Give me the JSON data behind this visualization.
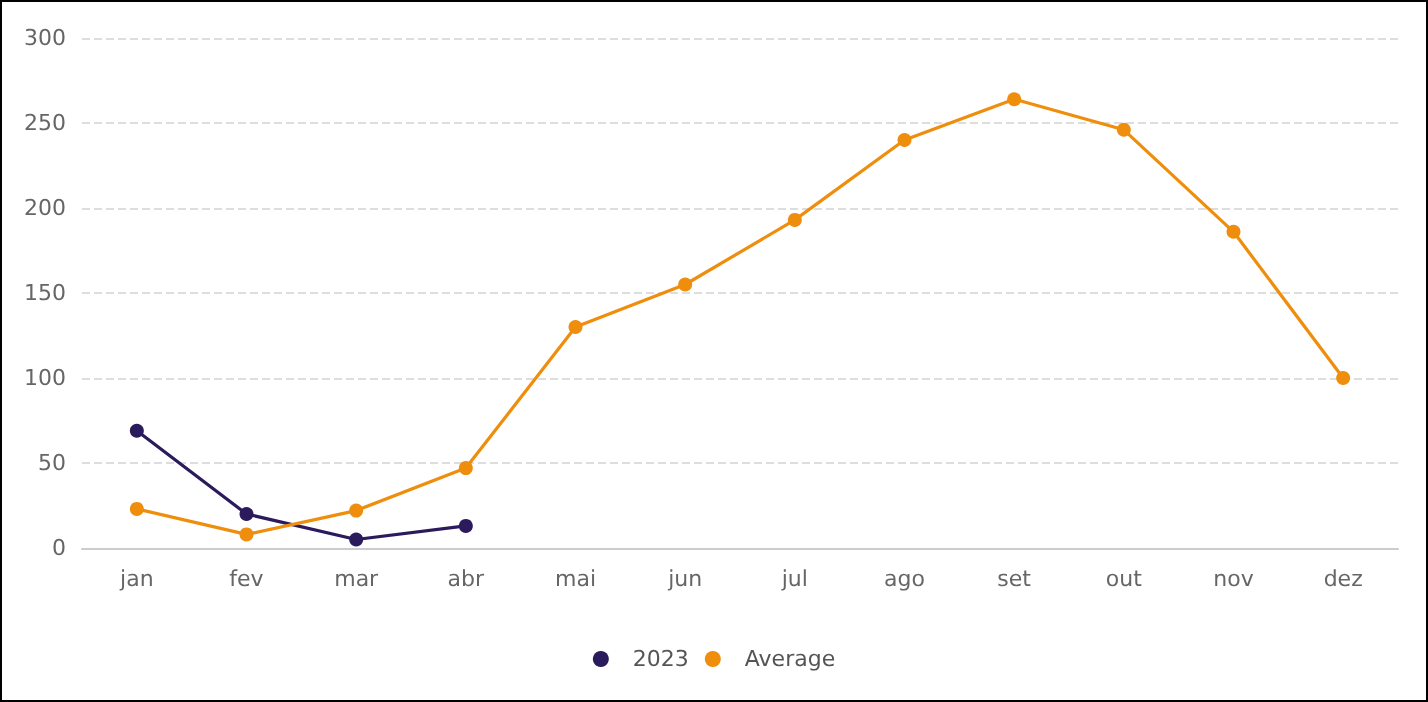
{
  "chart_data": {
    "type": "line",
    "categories": [
      "jan",
      "fev",
      "mar",
      "abr",
      "mai",
      "jun",
      "jul",
      "ago",
      "set",
      "out",
      "nov",
      "dez"
    ],
    "series": [
      {
        "name": "2023",
        "color": "#2b1a5c",
        "values": [
          69,
          20,
          5,
          13,
          null,
          null,
          null,
          null,
          null,
          null,
          null,
          null
        ]
      },
      {
        "name": "Average",
        "color": "#ef8d0c",
        "values": [
          23,
          8,
          22,
          47,
          130,
          155,
          193,
          240,
          264,
          246,
          186,
          100
        ]
      }
    ],
    "ylim": [
      0,
      300
    ],
    "yticks": [
      0,
      50,
      100,
      150,
      200,
      250,
      300
    ],
    "grid": "y",
    "legend": "bottom",
    "marker": "circle",
    "line_style": "solid"
  }
}
